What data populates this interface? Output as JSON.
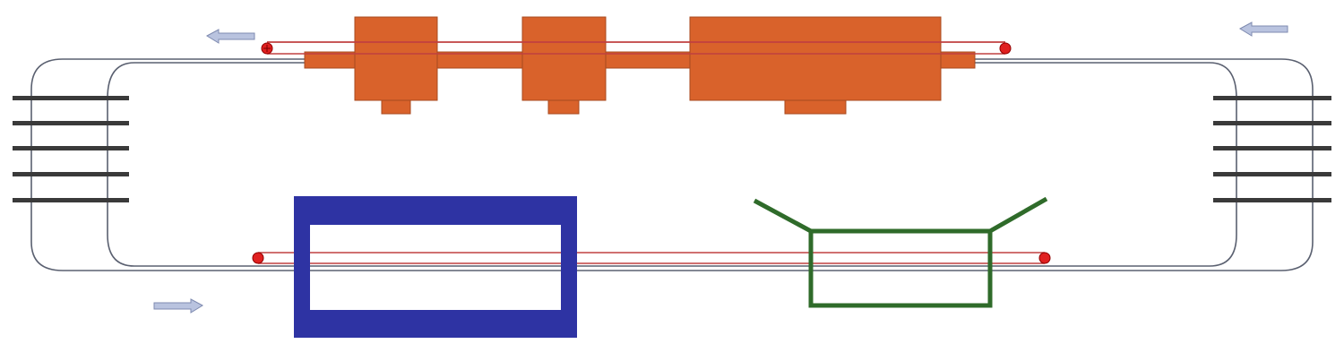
{
  "diagram": {
    "kind": "conveyor-loop-schematic",
    "colors": {
      "track": "#5a6070",
      "rail": "#3a3a3a",
      "station": "#d9622b",
      "station_edge": "#a84a1f",
      "oven": "#2e33a3",
      "frame": "#2f6b2a",
      "roller": "#e02020",
      "belt_line": "#c04040",
      "arrow_fill": "#b9c3df",
      "arrow_edge": "#7f8bb0"
    },
    "labels": [],
    "stations": [
      {
        "name": "station-1",
        "type": "process-block"
      },
      {
        "name": "station-2",
        "type": "process-block"
      },
      {
        "name": "station-3",
        "type": "process-block"
      }
    ],
    "flow_arrows": [
      {
        "name": "top-left-arrow",
        "direction": "left"
      },
      {
        "name": "top-right-arrow",
        "direction": "left"
      },
      {
        "name": "bottom-left-arrow",
        "direction": "right"
      }
    ]
  }
}
